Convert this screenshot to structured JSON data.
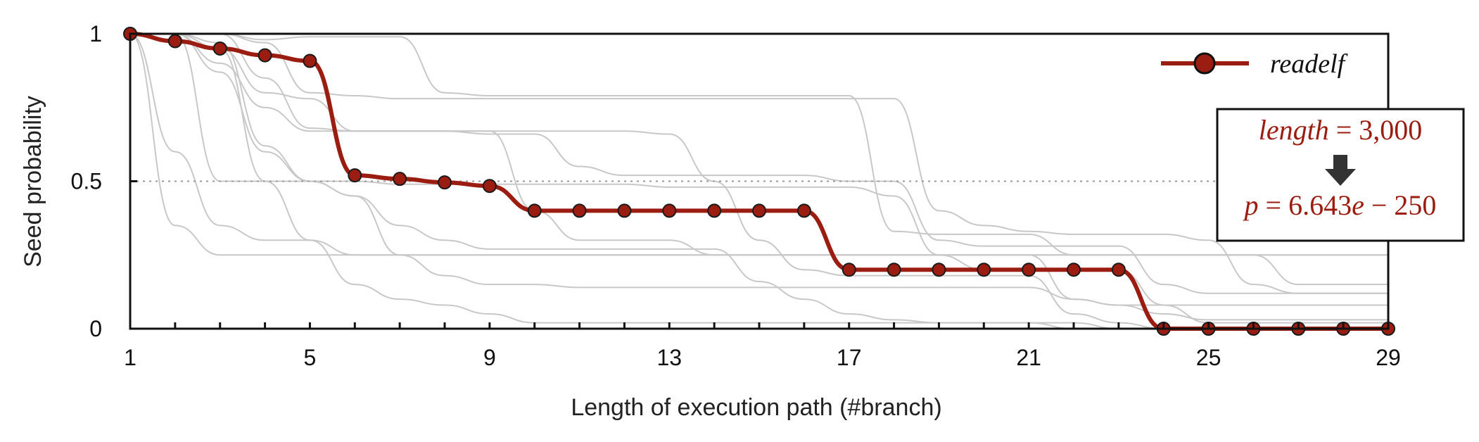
{
  "chart_data": {
    "type": "line",
    "xlabel": "Length of execution path (#branch)",
    "ylabel": "Seed probability",
    "xlim": [
      1,
      29
    ],
    "ylim": [
      0,
      1
    ],
    "x_ticks": [
      1,
      5,
      9,
      13,
      17,
      21,
      25,
      29
    ],
    "x_minor_ticks": [
      1,
      2,
      3,
      4,
      5,
      6,
      7,
      8,
      9,
      10,
      11,
      12,
      13,
      14,
      15,
      16,
      17,
      18,
      19,
      20,
      21,
      22,
      23,
      24,
      25,
      26,
      27,
      28,
      29
    ],
    "y_ticks": [
      {
        "value": 0,
        "label": "0"
      },
      {
        "value": 0.5,
        "label": "0.5"
      },
      {
        "value": 1,
        "label": "1"
      }
    ],
    "reference_line": {
      "y": 0.5,
      "style": "dotted"
    },
    "grid": false,
    "legend": {
      "position": "top-right"
    },
    "series": [
      {
        "name": "readelf",
        "highlight": true,
        "color": "#9b1c10",
        "marker": "circle",
        "x": [
          1,
          2,
          3,
          4,
          5,
          6,
          7,
          8,
          9,
          10,
          11,
          12,
          13,
          14,
          15,
          16,
          17,
          18,
          19,
          20,
          21,
          22,
          23,
          24,
          25,
          26,
          27,
          28,
          29
        ],
        "y": [
          1,
          0.975,
          0.95,
          0.927,
          0.908,
          0.52,
          0.508,
          0.496,
          0.484,
          0.4,
          0.4,
          0.4,
          0.4,
          0.4,
          0.4,
          0.4,
          0.2,
          0.2,
          0.2,
          0.2,
          0.2,
          0.2,
          0.2,
          0,
          0,
          0,
          0,
          0,
          0
        ]
      }
    ],
    "background_series": [
      {
        "x": [
          1,
          2,
          3,
          4,
          5,
          6,
          7,
          8,
          9,
          10,
          11,
          12,
          13,
          14,
          15,
          16,
          17,
          18,
          19,
          20,
          21,
          22,
          23,
          24,
          25,
          26,
          27,
          28,
          29
        ],
        "y": [
          1,
          1,
          1,
          0.98,
          0.99,
          0.99,
          0.99,
          0.8,
          0.79,
          0.79,
          0.79,
          0.79,
          0.79,
          0.79,
          0.79,
          0.79,
          0.79,
          0.33,
          0.32,
          0.32,
          0.32,
          0.25,
          0.25,
          0.25,
          0.25,
          0.25,
          0.15,
          0.15,
          0.15
        ]
      },
      {
        "x": [
          1,
          2,
          3,
          4,
          5,
          6,
          7,
          8,
          9,
          10,
          11,
          12,
          13,
          14,
          15,
          16,
          17,
          18,
          19,
          20,
          21,
          22,
          23,
          24,
          25,
          26,
          27,
          28,
          29
        ],
        "y": [
          1,
          1,
          1,
          0.97,
          0.8,
          0.79,
          0.78,
          0.78,
          0.78,
          0.78,
          0.78,
          0.78,
          0.78,
          0.78,
          0.78,
          0.78,
          0.78,
          0.78,
          0.4,
          0.35,
          0.33,
          0.32,
          0.32,
          0.32,
          0.3,
          0.15,
          0.12,
          0.12,
          0.12
        ]
      },
      {
        "x": [
          1,
          2,
          3,
          4,
          5,
          6,
          7,
          8,
          9,
          10,
          11,
          12,
          13,
          14,
          15,
          16,
          17,
          18,
          19,
          20,
          21,
          22,
          23,
          24,
          25,
          26,
          27,
          28,
          29
        ],
        "y": [
          1,
          1,
          0.95,
          0.8,
          0.78,
          0.67,
          0.67,
          0.67,
          0.66,
          0.66,
          0.55,
          0.52,
          0.52,
          0.52,
          0.52,
          0.52,
          0.5,
          0.5,
          0.3,
          0.28,
          0.28,
          0.28,
          0.28,
          0.15,
          0.12,
          0.12,
          0.12,
          0.12,
          0.12
        ]
      },
      {
        "x": [
          1,
          2,
          3,
          4,
          5,
          6,
          7,
          8,
          9,
          10,
          11,
          12,
          13,
          14,
          15,
          16,
          17,
          18,
          19,
          20,
          21,
          22,
          23,
          24,
          25,
          26,
          27,
          28,
          29
        ],
        "y": [
          1,
          1,
          0.9,
          0.75,
          0.67,
          0.67,
          0.67,
          0.67,
          0.67,
          0.4,
          0.3,
          0.3,
          0.3,
          0.25,
          0.25,
          0.25,
          0.25,
          0.25,
          0.25,
          0.25,
          0.25,
          0.1,
          0.08,
          0.05,
          0.03,
          0.03,
          0.03,
          0.03,
          0.03
        ]
      },
      {
        "x": [
          1,
          2,
          3,
          4,
          5,
          6,
          7,
          8,
          9,
          10,
          11,
          12,
          13,
          14,
          15,
          16,
          17,
          18,
          19,
          20,
          21,
          22,
          23,
          24,
          25,
          26,
          27,
          28,
          29
        ],
        "y": [
          1,
          1,
          0.5,
          0.5,
          0.5,
          0.45,
          0.35,
          0.3,
          0.27,
          0.27,
          0.27,
          0.27,
          0.27,
          0.27,
          0.16,
          0.1,
          0.05,
          0.03,
          0.02,
          0.02,
          0.02,
          0.02,
          0,
          0,
          0,
          0,
          0,
          0,
          0
        ]
      },
      {
        "x": [
          1,
          2,
          3,
          4,
          5,
          6,
          7,
          8,
          9,
          10,
          11,
          12,
          13,
          14,
          15,
          16,
          17,
          18,
          19,
          20,
          21,
          22,
          23,
          24,
          25,
          26,
          27,
          28,
          29
        ],
        "y": [
          1,
          1,
          0.87,
          0.6,
          0.5,
          0.45,
          0.25,
          0.18,
          0.15,
          0.15,
          0.14,
          0.14,
          0.14,
          0.14,
          0.14,
          0.14,
          0.14,
          0.14,
          0.14,
          0.14,
          0.14,
          0.1,
          0.08,
          0.08,
          0.08,
          0.08,
          0.08,
          0.08,
          0.08
        ]
      },
      {
        "x": [
          1,
          2,
          3,
          4,
          5,
          6,
          7,
          8,
          9,
          10,
          11,
          12,
          13,
          14,
          15,
          16,
          17,
          18,
          19,
          20,
          21,
          22,
          23,
          24,
          25,
          26,
          27,
          28,
          29
        ],
        "y": [
          1,
          0.6,
          0.35,
          0.3,
          0.3,
          0.25,
          0.25,
          0.25,
          0.25,
          0.25,
          0.25,
          0.25,
          0.25,
          0.25,
          0.25,
          0.25,
          0.25,
          0.25,
          0.25,
          0.25,
          0.25,
          0.25,
          0.25,
          0.25,
          0.25,
          0.25,
          0.25,
          0.25,
          0.25
        ]
      },
      {
        "x": [
          1,
          2,
          3,
          4,
          5,
          6,
          7,
          8,
          9,
          10,
          11,
          12,
          13,
          14,
          15,
          16,
          17,
          18,
          19,
          20,
          21,
          22,
          23,
          24,
          25,
          26,
          27,
          28,
          29
        ],
        "y": [
          1,
          0.35,
          0.25,
          0.25,
          0.25,
          0.25,
          0.25,
          0.25,
          0.25,
          0.25,
          0.25,
          0.25,
          0.25,
          0.25,
          0.25,
          0.25,
          0.25,
          0.25,
          0.25,
          0.25,
          0.25,
          0.25,
          0.25,
          0.25,
          0.25,
          0.25,
          0.25,
          0.25,
          0.25
        ]
      },
      {
        "x": [
          1,
          2,
          3,
          4,
          5,
          6,
          7,
          8,
          9,
          10,
          11,
          12,
          13,
          14,
          15,
          16,
          17,
          18,
          19,
          20,
          21,
          22,
          23,
          24,
          25,
          26,
          27,
          28,
          29
        ],
        "y": [
          1,
          1,
          0.97,
          0.62,
          0.5,
          0.5,
          0.49,
          0.49,
          0.49,
          0.49,
          0.49,
          0.49,
          0.48,
          0.48,
          0.48,
          0.48,
          0.48,
          0.45,
          0.25,
          0.2,
          0.2,
          0.2,
          0.2,
          0.08,
          0.02,
          0.02,
          0.02,
          0.02,
          0.02
        ]
      },
      {
        "x": [
          1,
          2,
          3,
          4,
          5,
          6,
          7,
          8,
          9,
          10,
          11,
          12,
          13,
          14,
          15,
          16,
          17,
          18,
          19,
          20,
          21,
          22,
          23,
          24,
          25,
          26,
          27,
          28,
          29
        ],
        "y": [
          1,
          1,
          1,
          0.85,
          0.68,
          0.67,
          0.67,
          0.67,
          0.67,
          0.67,
          0.67,
          0.67,
          0.66,
          0.5,
          0.3,
          0.2,
          0.18,
          0.18,
          0.18,
          0.18,
          0.18,
          0.05,
          0.02,
          0,
          0,
          0,
          0,
          0,
          0
        ]
      },
      {
        "x": [
          1,
          2,
          3,
          4,
          5,
          6,
          7,
          8,
          9,
          10,
          11,
          12,
          13,
          14,
          15,
          16,
          17,
          18,
          19,
          20,
          21,
          22,
          23,
          24,
          25,
          26,
          27,
          28,
          29
        ],
        "y": [
          1,
          1,
          0.95,
          0.5,
          0.3,
          0.15,
          0.1,
          0.08,
          0.05,
          0.02,
          0.02,
          0.02,
          0.02,
          0.02,
          0.02,
          0.02,
          0.02,
          0.02,
          0.02,
          0.02,
          0.02,
          0,
          0,
          0,
          0,
          0,
          0,
          0,
          0
        ]
      }
    ],
    "annotation": {
      "line1_italic": "length",
      "line1_rest": " = 3,000",
      "line2_italic_p": "p",
      "line2_mid": " = 6.643",
      "line2_italic_e": "e",
      "line2_rest": " − 250",
      "color": "#9b1c10",
      "arrow_color": "#333333"
    }
  }
}
